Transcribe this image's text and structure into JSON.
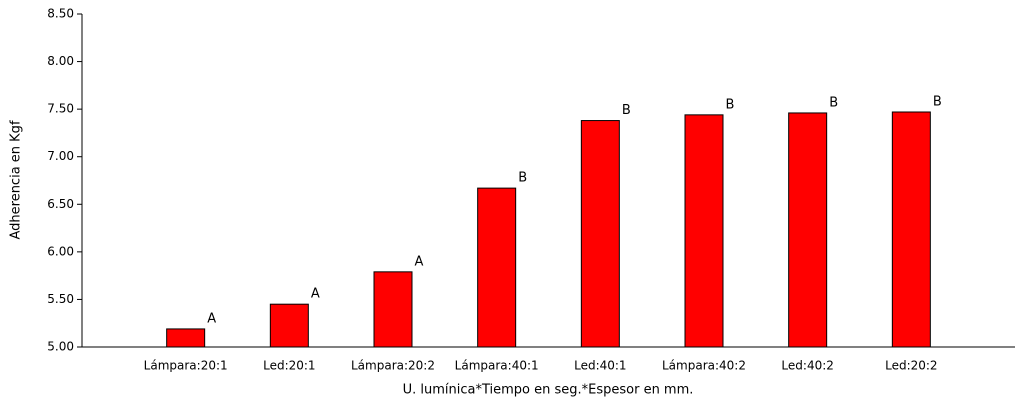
{
  "chart_data": {
    "type": "bar",
    "y_label": "Adherencia en Kgf",
    "x_label": "U. lumínica*Tiempo en seg.*Espesor en mm.",
    "categories": [
      "Lámpara:20:1",
      "Led:20:1",
      "Lámpara:20:2",
      "Lámpara:40:1",
      "Led:40:1",
      "Lámpara:40:2",
      "Led:40:2",
      "Led:20:2"
    ],
    "values": [
      5.19,
      5.45,
      5.79,
      6.67,
      7.38,
      7.44,
      7.46,
      7.47
    ],
    "annotations": [
      "A",
      "A",
      "A",
      "B",
      "B",
      "B",
      "B",
      "B"
    ],
    "color": "#ff0000",
    "ylim": [
      5.0,
      8.5
    ],
    "yticks": [
      {
        "value": 5.0,
        "label": "5.00"
      },
      {
        "value": 5.5,
        "label": "5.50"
      },
      {
        "value": 6.0,
        "label": "6.00"
      },
      {
        "value": 6.5,
        "label": "6.50"
      },
      {
        "value": 7.0,
        "label": "7.00"
      },
      {
        "value": 7.5,
        "label": "7.50"
      },
      {
        "value": 8.0,
        "label": "8.00"
      },
      {
        "value": 8.5,
        "label": "8.50"
      }
    ],
    "grid": false
  }
}
